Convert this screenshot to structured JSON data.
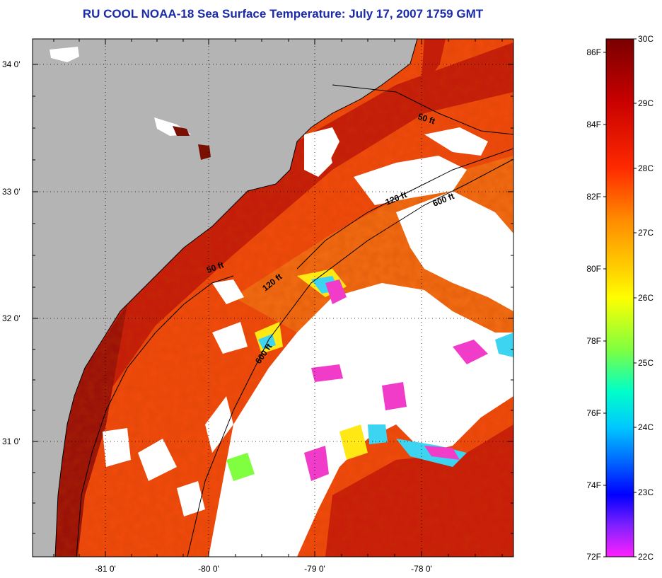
{
  "title": "RU COOL  NOAA-18  Sea Surface Temperature:  July 17, 2007 1759 GMT",
  "map": {
    "lat_labels": [
      "34 0'",
      "33 0'",
      "32 0'",
      "31 0'"
    ],
    "lon_labels": [
      "-81 0'",
      "-80 0'",
      "-79 0'",
      "-78 0'"
    ],
    "isobath_labels": [
      "50 ft",
      "120 ft",
      "600 ft",
      "50 ft",
      "120 ft",
      "600 ft"
    ],
    "colors": {
      "land": "#b4b4b4",
      "cloud": "#ffffff",
      "sst_warm": "#e8340e",
      "sst_hot": "#b4190a",
      "sst_mid": "#f26a10",
      "sst_cool_yellow": "#ffe814",
      "sst_cool_cyan": "#3cd4f0",
      "sst_cool_magenta": "#f03cc8"
    }
  },
  "colorbar": {
    "celsius_labels": [
      "30C",
      "29C",
      "28C",
      "27C",
      "26C",
      "25C",
      "24C",
      "23C",
      "22C"
    ],
    "fahrenheit_labels": [
      "86F",
      "84F",
      "82F",
      "80F",
      "78F",
      "76F",
      "74F",
      "72F"
    ],
    "gradient": [
      "#7a0000",
      "#c80000",
      "#ff2a00",
      "#ff8c00",
      "#ffd400",
      "#ffff00",
      "#7fff40",
      "#00ffc8",
      "#00c8ff",
      "#0060ff",
      "#0000ff",
      "#8020ff",
      "#ff20ff"
    ]
  }
}
